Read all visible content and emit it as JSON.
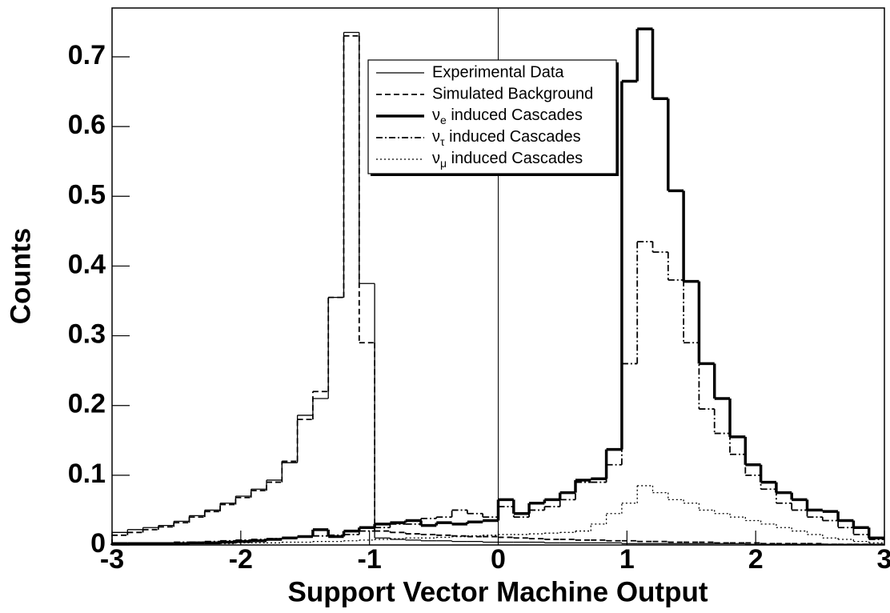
{
  "chart_data": {
    "type": "histogram",
    "x_label": "Support Vector Machine Output",
    "y_label": "Counts",
    "bins": [
      -3,
      -2.88,
      -2.76,
      -2.64,
      -2.52,
      -2.4,
      -2.28,
      -2.16,
      -2.04,
      -1.92,
      -1.8,
      -1.68,
      -1.56,
      -1.44,
      -1.32,
      -1.2,
      -1.08,
      -0.96,
      -0.84,
      -0.72,
      -0.6,
      -0.48,
      -0.36,
      -0.24,
      -0.12,
      0,
      0.12,
      0.24,
      0.36,
      0.48,
      0.6,
      0.72,
      0.84,
      0.96,
      1.08,
      1.2,
      1.32,
      1.44,
      1.56,
      1.68,
      1.8,
      1.92,
      2.04,
      2.16,
      2.28,
      2.4,
      2.52,
      2.64,
      2.76,
      2.88,
      3
    ],
    "xlim": [
      -3,
      3
    ],
    "ylim": [
      0,
      0.77
    ],
    "xticks": [
      -3,
      -2,
      -1,
      0,
      1,
      2,
      3
    ],
    "yticks": [
      0,
      0.1,
      0.2,
      0.3,
      0.4,
      0.5,
      0.6,
      0.7
    ],
    "vline": 0,
    "series": [
      {
        "name": "Experimental Data",
        "color": "#000000",
        "style": "solid",
        "width": 1.3,
        "values": [
          0.018,
          0.022,
          0.025,
          0.028,
          0.034,
          0.042,
          0.05,
          0.06,
          0.07,
          0.08,
          0.093,
          0.118,
          0.186,
          0.21,
          0.355,
          0.735,
          0.375,
          0.01,
          0.008,
          0.007,
          0.006,
          0.006,
          0.005,
          0.005,
          0.004,
          0.004,
          0.004,
          0.004,
          0.003,
          0.003,
          0.003,
          0.003,
          0.003,
          0.002,
          0.002,
          0.002,
          0.002,
          0.002,
          0.002,
          0.002,
          0.002,
          0.001,
          0.001,
          0.001,
          0.001,
          0.001,
          0.001,
          0.001,
          0.001,
          0.001
        ]
      },
      {
        "name": "Simulated Background",
        "color": "#000000",
        "style": "dashed",
        "width": 1.8,
        "values": [
          0.014,
          0.018,
          0.022,
          0.026,
          0.032,
          0.04,
          0.048,
          0.058,
          0.068,
          0.078,
          0.09,
          0.12,
          0.18,
          0.22,
          0.355,
          0.73,
          0.29,
          0.02,
          0.018,
          0.016,
          0.015,
          0.014,
          0.013,
          0.012,
          0.012,
          0.011,
          0.01,
          0.009,
          0.008,
          0.008,
          0.007,
          0.007,
          0.006,
          0.006,
          0.005,
          0.005,
          0.004,
          0.004,
          0.004,
          0.003,
          0.003,
          0.003,
          0.002,
          0.002,
          0.002,
          0.002,
          0.001,
          0.001,
          0.001,
          0.001
        ]
      },
      {
        "name": "νe induced Cascades",
        "color": "#000000",
        "style": "solid",
        "width": 3.5,
        "values": [
          0.002,
          0.002,
          0.002,
          0.002,
          0.002,
          0.003,
          0.003,
          0.004,
          0.005,
          0.006,
          0.008,
          0.01,
          0.012,
          0.022,
          0.012,
          0.02,
          0.025,
          0.03,
          0.032,
          0.035,
          0.028,
          0.032,
          0.03,
          0.033,
          0.035,
          0.065,
          0.045,
          0.06,
          0.065,
          0.075,
          0.093,
          0.095,
          0.137,
          0.665,
          0.74,
          0.64,
          0.508,
          0.378,
          0.26,
          0.21,
          0.155,
          0.115,
          0.09,
          0.075,
          0.065,
          0.05,
          0.048,
          0.035,
          0.025,
          0.01
        ]
      },
      {
        "name": "ντ induced Cascades",
        "color": "#000000",
        "style": "dashdot",
        "width": 1.8,
        "values": [
          0.002,
          0.002,
          0.003,
          0.003,
          0.004,
          0.004,
          0.005,
          0.006,
          0.007,
          0.008,
          0.009,
          0.01,
          0.012,
          0.013,
          0.014,
          0.015,
          0.02,
          0.025,
          0.03,
          0.03,
          0.038,
          0.04,
          0.05,
          0.045,
          0.04,
          0.055,
          0.04,
          0.05,
          0.055,
          0.065,
          0.09,
          0.09,
          0.115,
          0.26,
          0.435,
          0.42,
          0.38,
          0.29,
          0.195,
          0.16,
          0.13,
          0.1,
          0.08,
          0.06,
          0.05,
          0.04,
          0.035,
          0.025,
          0.015,
          0.008
        ]
      },
      {
        "name": "νμ induced Cascades",
        "color": "#000000",
        "style": "dotted",
        "width": 1.3,
        "values": [
          0.001,
          0.001,
          0.001,
          0.001,
          0.001,
          0.002,
          0.002,
          0.002,
          0.003,
          0.003,
          0.003,
          0.004,
          0.004,
          0.005,
          0.005,
          0.006,
          0.007,
          0.008,
          0.009,
          0.01,
          0.01,
          0.011,
          0.012,
          0.013,
          0.014,
          0.015,
          0.015,
          0.016,
          0.017,
          0.018,
          0.02,
          0.03,
          0.045,
          0.06,
          0.085,
          0.075,
          0.065,
          0.06,
          0.05,
          0.045,
          0.04,
          0.035,
          0.03,
          0.025,
          0.02,
          0.015,
          0.01,
          0.008,
          0.005,
          0.003
        ]
      }
    ]
  }
}
